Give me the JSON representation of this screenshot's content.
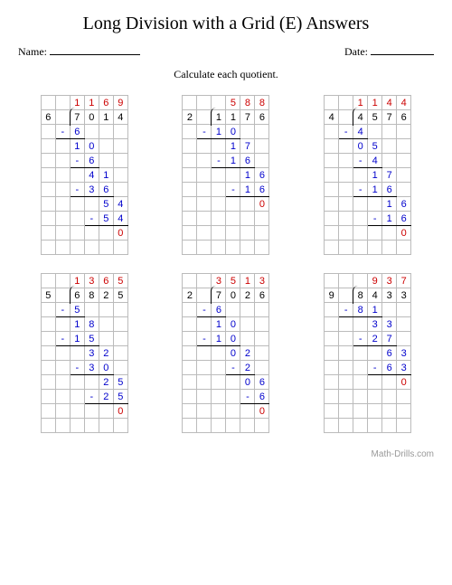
{
  "title": "Long Division with a Grid (E) Answers",
  "name_label": "Name:",
  "date_label": "Date:",
  "instruction": "Calculate each quotient.",
  "footer": "Math-Drills.com",
  "grid_cols": 6,
  "colors": {
    "quotient": "#cc0000",
    "work": "#0000cc",
    "remainder": "#cc0000",
    "grid_border": "#bbbbbb"
  },
  "problems": [
    {
      "rows": 11,
      "cells": [
        {
          "r": 0,
          "c": 2,
          "t": "1",
          "cls": "quot"
        },
        {
          "r": 0,
          "c": 3,
          "t": "1",
          "cls": "quot"
        },
        {
          "r": 0,
          "c": 4,
          "t": "6",
          "cls": "quot"
        },
        {
          "r": 0,
          "c": 5,
          "t": "9",
          "cls": "quot"
        },
        {
          "r": 1,
          "c": 0,
          "t": "6"
        },
        {
          "r": 1,
          "c": 2,
          "t": "7",
          "cls": "bracket-top bracket-left"
        },
        {
          "r": 1,
          "c": 3,
          "t": "0",
          "cls": "bracket-top"
        },
        {
          "r": 1,
          "c": 4,
          "t": "1",
          "cls": "bracket-top"
        },
        {
          "r": 1,
          "c": 5,
          "t": "4",
          "cls": "bracket-top"
        },
        {
          "r": 2,
          "c": 1,
          "t": "-",
          "cls": "work hr-under"
        },
        {
          "r": 2,
          "c": 2,
          "t": "6",
          "cls": "work hr-under"
        },
        {
          "r": 3,
          "c": 2,
          "t": "1",
          "cls": "work"
        },
        {
          "r": 3,
          "c": 3,
          "t": "0",
          "cls": "work"
        },
        {
          "r": 4,
          "c": 2,
          "t": "-",
          "cls": "work hr-under"
        },
        {
          "r": 4,
          "c": 3,
          "t": "6",
          "cls": "work hr-under"
        },
        {
          "r": 5,
          "c": 3,
          "t": "4",
          "cls": "work"
        },
        {
          "r": 5,
          "c": 4,
          "t": "1",
          "cls": "work"
        },
        {
          "r": 6,
          "c": 2,
          "t": "-",
          "cls": "work hr-under"
        },
        {
          "r": 6,
          "c": 3,
          "t": "3",
          "cls": "work hr-under"
        },
        {
          "r": 6,
          "c": 4,
          "t": "6",
          "cls": "work hr-under"
        },
        {
          "r": 7,
          "c": 4,
          "t": "5",
          "cls": "work"
        },
        {
          "r": 7,
          "c": 5,
          "t": "4",
          "cls": "work"
        },
        {
          "r": 8,
          "c": 3,
          "t": "-",
          "cls": "work hr-under"
        },
        {
          "r": 8,
          "c": 4,
          "t": "5",
          "cls": "work hr-under"
        },
        {
          "r": 8,
          "c": 5,
          "t": "4",
          "cls": "work hr-under"
        },
        {
          "r": 9,
          "c": 5,
          "t": "0",
          "cls": "rem"
        }
      ]
    },
    {
      "rows": 11,
      "cells": [
        {
          "r": 0,
          "c": 3,
          "t": "5",
          "cls": "quot"
        },
        {
          "r": 0,
          "c": 4,
          "t": "8",
          "cls": "quot"
        },
        {
          "r": 0,
          "c": 5,
          "t": "8",
          "cls": "quot"
        },
        {
          "r": 1,
          "c": 0,
          "t": "2"
        },
        {
          "r": 1,
          "c": 2,
          "t": "1",
          "cls": "bracket-top bracket-left"
        },
        {
          "r": 1,
          "c": 3,
          "t": "1",
          "cls": "bracket-top"
        },
        {
          "r": 1,
          "c": 4,
          "t": "7",
          "cls": "bracket-top"
        },
        {
          "r": 1,
          "c": 5,
          "t": "6",
          "cls": "bracket-top"
        },
        {
          "r": 2,
          "c": 1,
          "t": "-",
          "cls": "work hr-under"
        },
        {
          "r": 2,
          "c": 2,
          "t": "1",
          "cls": "work hr-under"
        },
        {
          "r": 2,
          "c": 3,
          "t": "0",
          "cls": "work hr-under"
        },
        {
          "r": 3,
          "c": 3,
          "t": "1",
          "cls": "work"
        },
        {
          "r": 3,
          "c": 4,
          "t": "7",
          "cls": "work"
        },
        {
          "r": 4,
          "c": 2,
          "t": "-",
          "cls": "work hr-under"
        },
        {
          "r": 4,
          "c": 3,
          "t": "1",
          "cls": "work hr-under"
        },
        {
          "r": 4,
          "c": 4,
          "t": "6",
          "cls": "work hr-under"
        },
        {
          "r": 5,
          "c": 4,
          "t": "1",
          "cls": "work"
        },
        {
          "r": 5,
          "c": 5,
          "t": "6",
          "cls": "work"
        },
        {
          "r": 6,
          "c": 3,
          "t": "-",
          "cls": "work hr-under"
        },
        {
          "r": 6,
          "c": 4,
          "t": "1",
          "cls": "work hr-under"
        },
        {
          "r": 6,
          "c": 5,
          "t": "6",
          "cls": "work hr-under"
        },
        {
          "r": 7,
          "c": 5,
          "t": "0",
          "cls": "rem"
        }
      ]
    },
    {
      "rows": 11,
      "cells": [
        {
          "r": 0,
          "c": 2,
          "t": "1",
          "cls": "quot"
        },
        {
          "r": 0,
          "c": 3,
          "t": "1",
          "cls": "quot"
        },
        {
          "r": 0,
          "c": 4,
          "t": "4",
          "cls": "quot"
        },
        {
          "r": 0,
          "c": 5,
          "t": "4",
          "cls": "quot"
        },
        {
          "r": 1,
          "c": 0,
          "t": "4"
        },
        {
          "r": 1,
          "c": 2,
          "t": "4",
          "cls": "bracket-top bracket-left"
        },
        {
          "r": 1,
          "c": 3,
          "t": "5",
          "cls": "bracket-top"
        },
        {
          "r": 1,
          "c": 4,
          "t": "7",
          "cls": "bracket-top"
        },
        {
          "r": 1,
          "c": 5,
          "t": "6",
          "cls": "bracket-top"
        },
        {
          "r": 2,
          "c": 1,
          "t": "-",
          "cls": "work hr-under"
        },
        {
          "r": 2,
          "c": 2,
          "t": "4",
          "cls": "work hr-under"
        },
        {
          "r": 3,
          "c": 2,
          "t": "0",
          "cls": "work"
        },
        {
          "r": 3,
          "c": 3,
          "t": "5",
          "cls": "work"
        },
        {
          "r": 4,
          "c": 2,
          "t": "-",
          "cls": "work hr-under"
        },
        {
          "r": 4,
          "c": 3,
          "t": "4",
          "cls": "work hr-under"
        },
        {
          "r": 5,
          "c": 3,
          "t": "1",
          "cls": "work"
        },
        {
          "r": 5,
          "c": 4,
          "t": "7",
          "cls": "work"
        },
        {
          "r": 6,
          "c": 2,
          "t": "-",
          "cls": "work hr-under"
        },
        {
          "r": 6,
          "c": 3,
          "t": "1",
          "cls": "work hr-under"
        },
        {
          "r": 6,
          "c": 4,
          "t": "6",
          "cls": "work hr-under"
        },
        {
          "r": 7,
          "c": 4,
          "t": "1",
          "cls": "work"
        },
        {
          "r": 7,
          "c": 5,
          "t": "6",
          "cls": "work"
        },
        {
          "r": 8,
          "c": 3,
          "t": "-",
          "cls": "work hr-under"
        },
        {
          "r": 8,
          "c": 4,
          "t": "1",
          "cls": "work hr-under"
        },
        {
          "r": 8,
          "c": 5,
          "t": "6",
          "cls": "work hr-under"
        },
        {
          "r": 9,
          "c": 5,
          "t": "0",
          "cls": "rem"
        }
      ]
    },
    {
      "rows": 11,
      "cells": [
        {
          "r": 0,
          "c": 2,
          "t": "1",
          "cls": "quot"
        },
        {
          "r": 0,
          "c": 3,
          "t": "3",
          "cls": "quot"
        },
        {
          "r": 0,
          "c": 4,
          "t": "6",
          "cls": "quot"
        },
        {
          "r": 0,
          "c": 5,
          "t": "5",
          "cls": "quot"
        },
        {
          "r": 1,
          "c": 0,
          "t": "5"
        },
        {
          "r": 1,
          "c": 2,
          "t": "6",
          "cls": "bracket-top bracket-left"
        },
        {
          "r": 1,
          "c": 3,
          "t": "8",
          "cls": "bracket-top"
        },
        {
          "r": 1,
          "c": 4,
          "t": "2",
          "cls": "bracket-top"
        },
        {
          "r": 1,
          "c": 5,
          "t": "5",
          "cls": "bracket-top"
        },
        {
          "r": 2,
          "c": 1,
          "t": "-",
          "cls": "work hr-under"
        },
        {
          "r": 2,
          "c": 2,
          "t": "5",
          "cls": "work hr-under"
        },
        {
          "r": 3,
          "c": 2,
          "t": "1",
          "cls": "work"
        },
        {
          "r": 3,
          "c": 3,
          "t": "8",
          "cls": "work"
        },
        {
          "r": 4,
          "c": 1,
          "t": "-",
          "cls": "work hr-under"
        },
        {
          "r": 4,
          "c": 2,
          "t": "1",
          "cls": "work hr-under"
        },
        {
          "r": 4,
          "c": 3,
          "t": "5",
          "cls": "work hr-under"
        },
        {
          "r": 5,
          "c": 3,
          "t": "3",
          "cls": "work"
        },
        {
          "r": 5,
          "c": 4,
          "t": "2",
          "cls": "work"
        },
        {
          "r": 6,
          "c": 2,
          "t": "-",
          "cls": "work hr-under"
        },
        {
          "r": 6,
          "c": 3,
          "t": "3",
          "cls": "work hr-under"
        },
        {
          "r": 6,
          "c": 4,
          "t": "0",
          "cls": "work hr-under"
        },
        {
          "r": 7,
          "c": 4,
          "t": "2",
          "cls": "work"
        },
        {
          "r": 7,
          "c": 5,
          "t": "5",
          "cls": "work"
        },
        {
          "r": 8,
          "c": 3,
          "t": "-",
          "cls": "work hr-under"
        },
        {
          "r": 8,
          "c": 4,
          "t": "2",
          "cls": "work hr-under"
        },
        {
          "r": 8,
          "c": 5,
          "t": "5",
          "cls": "work hr-under"
        },
        {
          "r": 9,
          "c": 5,
          "t": "0",
          "cls": "rem"
        }
      ]
    },
    {
      "rows": 11,
      "cells": [
        {
          "r": 0,
          "c": 2,
          "t": "3",
          "cls": "quot"
        },
        {
          "r": 0,
          "c": 3,
          "t": "5",
          "cls": "quot"
        },
        {
          "r": 0,
          "c": 4,
          "t": "1",
          "cls": "quot"
        },
        {
          "r": 0,
          "c": 5,
          "t": "3",
          "cls": "quot"
        },
        {
          "r": 1,
          "c": 0,
          "t": "2"
        },
        {
          "r": 1,
          "c": 2,
          "t": "7",
          "cls": "bracket-top bracket-left"
        },
        {
          "r": 1,
          "c": 3,
          "t": "0",
          "cls": "bracket-top"
        },
        {
          "r": 1,
          "c": 4,
          "t": "2",
          "cls": "bracket-top"
        },
        {
          "r": 1,
          "c": 5,
          "t": "6",
          "cls": "bracket-top"
        },
        {
          "r": 2,
          "c": 1,
          "t": "-",
          "cls": "work hr-under"
        },
        {
          "r": 2,
          "c": 2,
          "t": "6",
          "cls": "work hr-under"
        },
        {
          "r": 3,
          "c": 2,
          "t": "1",
          "cls": "work"
        },
        {
          "r": 3,
          "c": 3,
          "t": "0",
          "cls": "work"
        },
        {
          "r": 4,
          "c": 1,
          "t": "-",
          "cls": "work hr-under"
        },
        {
          "r": 4,
          "c": 2,
          "t": "1",
          "cls": "work hr-under"
        },
        {
          "r": 4,
          "c": 3,
          "t": "0",
          "cls": "work hr-under"
        },
        {
          "r": 5,
          "c": 3,
          "t": "0",
          "cls": "work"
        },
        {
          "r": 5,
          "c": 4,
          "t": "2",
          "cls": "work"
        },
        {
          "r": 6,
          "c": 3,
          "t": "-",
          "cls": "work hr-under"
        },
        {
          "r": 6,
          "c": 4,
          "t": "2",
          "cls": "work hr-under"
        },
        {
          "r": 7,
          "c": 4,
          "t": "0",
          "cls": "work"
        },
        {
          "r": 7,
          "c": 5,
          "t": "6",
          "cls": "work"
        },
        {
          "r": 8,
          "c": 4,
          "t": "-",
          "cls": "work hr-under"
        },
        {
          "r": 8,
          "c": 5,
          "t": "6",
          "cls": "work hr-under"
        },
        {
          "r": 9,
          "c": 5,
          "t": "0",
          "cls": "rem"
        }
      ]
    },
    {
      "rows": 11,
      "cells": [
        {
          "r": 0,
          "c": 3,
          "t": "9",
          "cls": "quot"
        },
        {
          "r": 0,
          "c": 4,
          "t": "3",
          "cls": "quot"
        },
        {
          "r": 0,
          "c": 5,
          "t": "7",
          "cls": "quot"
        },
        {
          "r": 1,
          "c": 0,
          "t": "9"
        },
        {
          "r": 1,
          "c": 2,
          "t": "8",
          "cls": "bracket-top bracket-left"
        },
        {
          "r": 1,
          "c": 3,
          "t": "4",
          "cls": "bracket-top"
        },
        {
          "r": 1,
          "c": 4,
          "t": "3",
          "cls": "bracket-top"
        },
        {
          "r": 1,
          "c": 5,
          "t": "3",
          "cls": "bracket-top"
        },
        {
          "r": 2,
          "c": 1,
          "t": "-",
          "cls": "work hr-under"
        },
        {
          "r": 2,
          "c": 2,
          "t": "8",
          "cls": "work hr-under"
        },
        {
          "r": 2,
          "c": 3,
          "t": "1",
          "cls": "work hr-under"
        },
        {
          "r": 3,
          "c": 3,
          "t": "3",
          "cls": "work"
        },
        {
          "r": 3,
          "c": 4,
          "t": "3",
          "cls": "work"
        },
        {
          "r": 4,
          "c": 2,
          "t": "-",
          "cls": "work hr-under"
        },
        {
          "r": 4,
          "c": 3,
          "t": "2",
          "cls": "work hr-under"
        },
        {
          "r": 4,
          "c": 4,
          "t": "7",
          "cls": "work hr-under"
        },
        {
          "r": 5,
          "c": 4,
          "t": "6",
          "cls": "work"
        },
        {
          "r": 5,
          "c": 5,
          "t": "3",
          "cls": "work"
        },
        {
          "r": 6,
          "c": 3,
          "t": "-",
          "cls": "work hr-under"
        },
        {
          "r": 6,
          "c": 4,
          "t": "6",
          "cls": "work hr-under"
        },
        {
          "r": 6,
          "c": 5,
          "t": "3",
          "cls": "work hr-under"
        },
        {
          "r": 7,
          "c": 5,
          "t": "0",
          "cls": "rem"
        }
      ]
    }
  ]
}
